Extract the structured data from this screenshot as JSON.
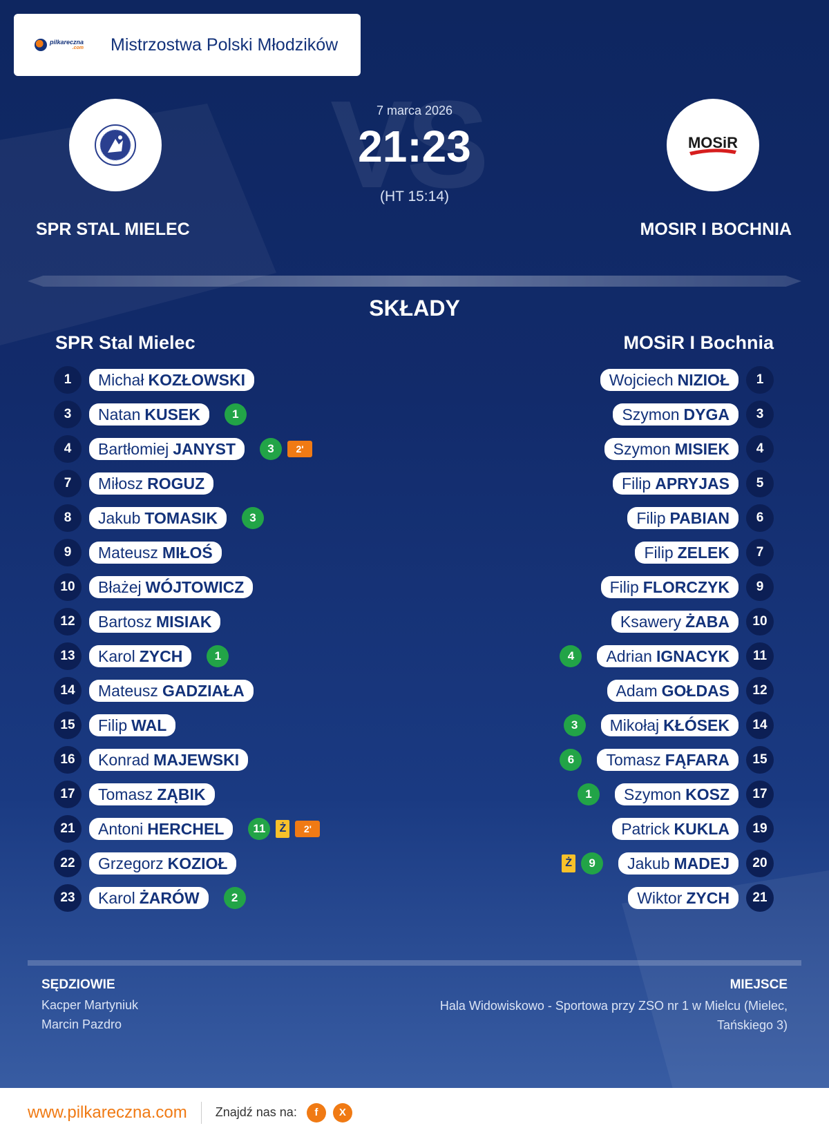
{
  "header": {
    "logo_text": "pilkareczna",
    "logo_sub": ".com",
    "title": "Mistrzostwa Polski Młodzików"
  },
  "match": {
    "date": "7 marca 2026",
    "score": "21:23",
    "halftime": "(HT 15:14)",
    "vs": "VS"
  },
  "home": {
    "name_upper": "SPR STAL MIELEC",
    "name": "SPR Stal Mielec",
    "players": [
      {
        "num": "1",
        "first": "Michał",
        "last": "KOZŁOWSKI",
        "goals": "",
        "yellow": "",
        "susp": ""
      },
      {
        "num": "3",
        "first": "Natan",
        "last": "KUSEK",
        "goals": "1",
        "yellow": "",
        "susp": ""
      },
      {
        "num": "4",
        "first": "Bartłomiej",
        "last": "JANYST",
        "goals": "3",
        "yellow": "",
        "susp": "2'"
      },
      {
        "num": "7",
        "first": "Miłosz",
        "last": "ROGUZ",
        "goals": "",
        "yellow": "",
        "susp": ""
      },
      {
        "num": "8",
        "first": "Jakub",
        "last": "TOMASIK",
        "goals": "3",
        "yellow": "",
        "susp": ""
      },
      {
        "num": "9",
        "first": "Mateusz",
        "last": "MIŁOŚ",
        "goals": "",
        "yellow": "",
        "susp": ""
      },
      {
        "num": "10",
        "first": "Błażej",
        "last": "WÓJTOWICZ",
        "goals": "",
        "yellow": "",
        "susp": ""
      },
      {
        "num": "12",
        "first": "Bartosz",
        "last": "MISIAK",
        "goals": "",
        "yellow": "",
        "susp": ""
      },
      {
        "num": "13",
        "first": "Karol",
        "last": "ZYCH",
        "goals": "1",
        "yellow": "",
        "susp": ""
      },
      {
        "num": "14",
        "first": "Mateusz",
        "last": "GADZIAŁA",
        "goals": "",
        "yellow": "",
        "susp": ""
      },
      {
        "num": "15",
        "first": "Filip",
        "last": "WAL",
        "goals": "",
        "yellow": "",
        "susp": ""
      },
      {
        "num": "16",
        "first": "Konrad",
        "last": "MAJEWSKI",
        "goals": "",
        "yellow": "",
        "susp": ""
      },
      {
        "num": "17",
        "first": "Tomasz",
        "last": "ZĄBIK",
        "goals": "",
        "yellow": "",
        "susp": ""
      },
      {
        "num": "21",
        "first": "Antoni",
        "last": "HERCHEL",
        "goals": "11",
        "yellow": "Ż",
        "susp": "2'"
      },
      {
        "num": "22",
        "first": "Grzegorz",
        "last": "KOZIOŁ",
        "goals": "",
        "yellow": "",
        "susp": ""
      },
      {
        "num": "23",
        "first": "Karol",
        "last": "ŻARÓW",
        "goals": "2",
        "yellow": "",
        "susp": ""
      }
    ]
  },
  "away": {
    "name_upper": "MOSIR I BOCHNIA",
    "name": "MOSiR I Bochnia",
    "logo_text": "MOSiR",
    "players": [
      {
        "num": "1",
        "first": "Wojciech",
        "last": "NIZIOŁ",
        "goals": "",
        "yellow": "",
        "susp": ""
      },
      {
        "num": "3",
        "first": "Szymon",
        "last": "DYGA",
        "goals": "",
        "yellow": "",
        "susp": ""
      },
      {
        "num": "4",
        "first": "Szymon",
        "last": "MISIEK",
        "goals": "",
        "yellow": "",
        "susp": ""
      },
      {
        "num": "5",
        "first": "Filip",
        "last": "APRYJAS",
        "goals": "",
        "yellow": "",
        "susp": ""
      },
      {
        "num": "6",
        "first": "Filip",
        "last": "PABIAN",
        "goals": "",
        "yellow": "",
        "susp": ""
      },
      {
        "num": "7",
        "first": "Filip",
        "last": "ZELEK",
        "goals": "",
        "yellow": "",
        "susp": ""
      },
      {
        "num": "9",
        "first": "Filip",
        "last": "FLORCZYK",
        "goals": "",
        "yellow": "",
        "susp": ""
      },
      {
        "num": "10",
        "first": "Ksawery",
        "last": "ŻABA",
        "goals": "",
        "yellow": "",
        "susp": ""
      },
      {
        "num": "11",
        "first": "Adrian",
        "last": "IGNACYK",
        "goals": "4",
        "yellow": "",
        "susp": ""
      },
      {
        "num": "12",
        "first": "Adam",
        "last": "GOŁDAS",
        "goals": "",
        "yellow": "",
        "susp": ""
      },
      {
        "num": "14",
        "first": "Mikołaj",
        "last": "KŁÓSEK",
        "goals": "3",
        "yellow": "",
        "susp": ""
      },
      {
        "num": "15",
        "first": "Tomasz",
        "last": "FĄFARA",
        "goals": "6",
        "yellow": "",
        "susp": ""
      },
      {
        "num": "17",
        "first": "Szymon",
        "last": "KOSZ",
        "goals": "1",
        "yellow": "",
        "susp": ""
      },
      {
        "num": "19",
        "first": "Patrick",
        "last": "KUKLA",
        "goals": "",
        "yellow": "",
        "susp": ""
      },
      {
        "num": "20",
        "first": "Jakub",
        "last": "MADEJ",
        "goals": "9",
        "yellow": "Ż",
        "susp": ""
      },
      {
        "num": "21",
        "first": "Wiktor",
        "last": "ZYCH",
        "goals": "",
        "yellow": "",
        "susp": ""
      }
    ]
  },
  "section_title": "SKŁADY",
  "referees": {
    "title": "SĘDZIOWIE",
    "names": [
      "Kacper Martyniuk",
      "Marcin Pazdro"
    ]
  },
  "venue": {
    "title": "MIEJSCE",
    "text": "Hala Widowiskowo - Sportowa przy ZSO nr 1 w Mielcu (Mielec, Tańskiego 3)"
  },
  "footer": {
    "url": "www.pilkareczna.com",
    "label": "Znajdź nas na:",
    "social": [
      {
        "icon": "facebook-icon",
        "glyph": "f"
      },
      {
        "icon": "x-icon",
        "glyph": "X"
      }
    ]
  },
  "colors": {
    "accent": "#f07a14",
    "navy": "#13327a",
    "goal": "#22a447",
    "yellow_card": "#f8c12a"
  }
}
